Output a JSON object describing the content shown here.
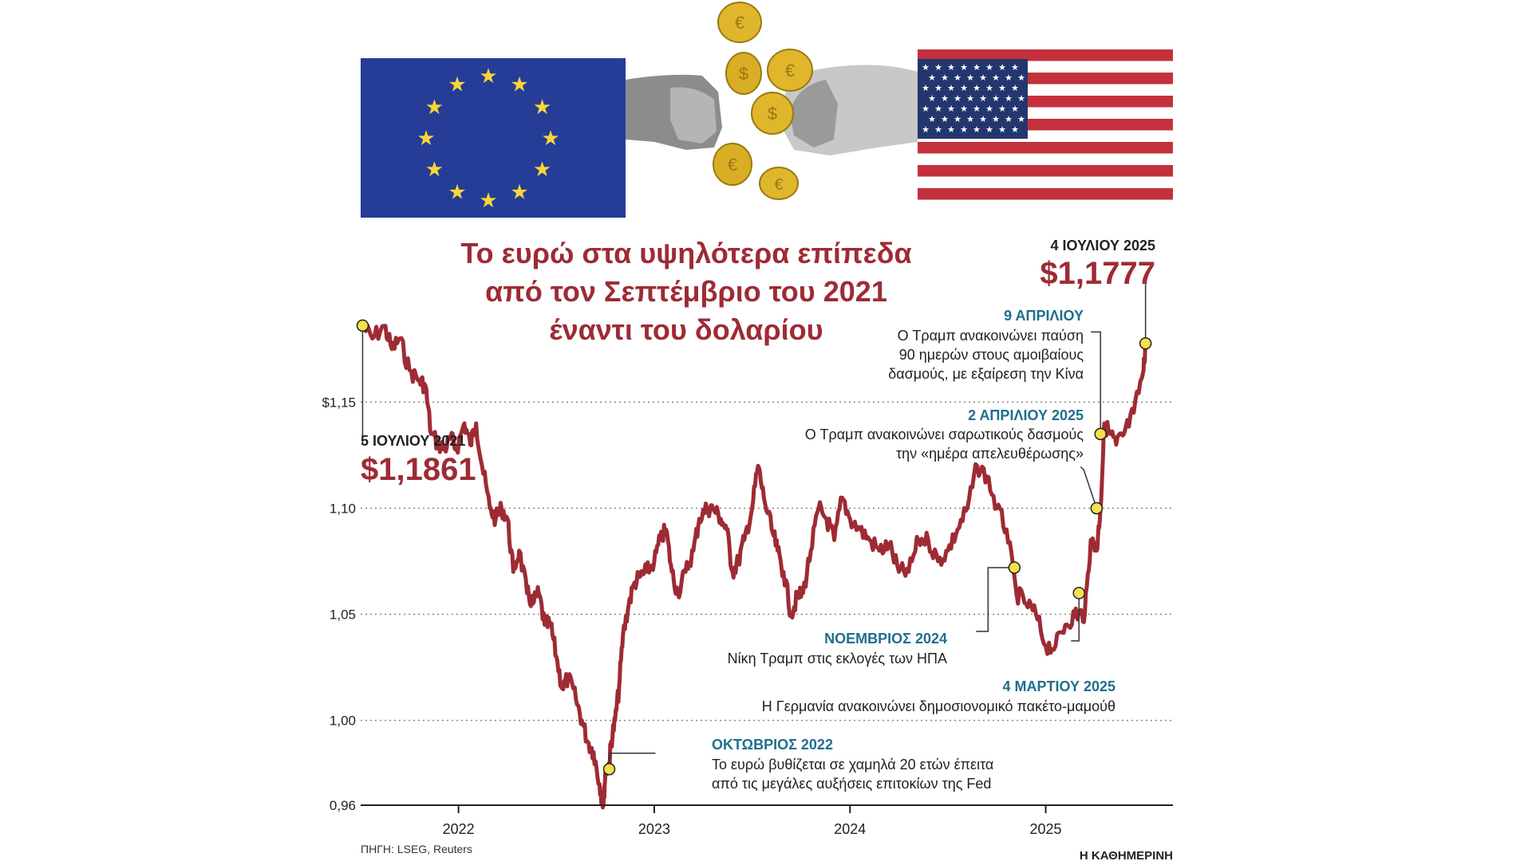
{
  "colors": {
    "line": "#9e2b34",
    "title": "#9e2b34",
    "event_date": "#1f6f8e",
    "dark_label": "#222222",
    "marker_fill": "#f4e04d",
    "eu_blue": "#253d96",
    "eu_star": "#f8d53a",
    "us_red": "#c4313c",
    "us_blue": "#24366e",
    "coin": "#e0b62c"
  },
  "chart_data": {
    "type": "line",
    "title": "Το ευρώ στα υψηλότερα επίπεδα από τον Σεπτέμβριο του 2021 έναντι του δολαρίου",
    "title_lines": [
      "Το ευρώ στα υψηλότερα επίπεδα",
      "από τον Σεπτέμβριο του 2021",
      "έναντι του δολαρίου"
    ],
    "xlabel": "",
    "ylabel": "",
    "xlim": [
      2021.5,
      2025.65
    ],
    "ylim": [
      0.96,
      1.19
    ],
    "y_ticks": [
      {
        "value": 1.15,
        "label": "$1,15"
      },
      {
        "value": 1.1,
        "label": "1,10"
      },
      {
        "value": 1.05,
        "label": "1,05"
      },
      {
        "value": 1.0,
        "label": "1,00"
      },
      {
        "value": 0.96,
        "label": "0,96"
      }
    ],
    "x_ticks": [
      {
        "value": 2022,
        "label": "2022"
      },
      {
        "value": 2023,
        "label": "2023"
      },
      {
        "value": 2024,
        "label": "2024"
      },
      {
        "value": 2025,
        "label": "2025"
      }
    ],
    "grid": "horizontal-dotted",
    "series": [
      {
        "name": "EUR/USD",
        "x": [
          2021.51,
          2021.56,
          2021.62,
          2021.66,
          2021.7,
          2021.75,
          2021.8,
          2021.83,
          2021.86,
          2021.9,
          2021.93,
          2021.96,
          2021.99,
          2022.03,
          2022.06,
          2022.09,
          2022.12,
          2022.16,
          2022.19,
          2022.22,
          2022.25,
          2022.28,
          2022.31,
          2022.35,
          2022.38,
          2022.41,
          2022.44,
          2022.47,
          2022.5,
          2022.53,
          2022.56,
          2022.6,
          2022.63,
          2022.66,
          2022.69,
          2022.72,
          2022.74,
          2022.75,
          2022.77,
          2022.78,
          2022.8,
          2022.82,
          2022.84,
          2022.87,
          2022.9,
          2022.93,
          2022.96,
          2023.0,
          2023.03,
          2023.06,
          2023.09,
          2023.12,
          2023.16,
          2023.2,
          2023.23,
          2023.27,
          2023.3,
          2023.34,
          2023.37,
          2023.4,
          2023.43,
          2023.46,
          2023.5,
          2023.53,
          2023.56,
          2023.6,
          2023.63,
          2023.66,
          2023.7,
          2023.73,
          2023.76,
          2023.8,
          2023.84,
          2023.88,
          2023.92,
          2023.96,
          2024.0,
          2024.05,
          2024.1,
          2024.15,
          2024.2,
          2024.25,
          2024.3,
          2024.35,
          2024.4,
          2024.45,
          2024.5,
          2024.55,
          2024.6,
          2024.65,
          2024.7,
          2024.75,
          2024.8,
          2024.85,
          2024.9,
          2024.95,
          2025.0,
          2025.05,
          2025.1,
          2025.15,
          2025.17,
          2025.2,
          2025.23,
          2025.26,
          2025.28,
          2025.3,
          2025.33,
          2025.36,
          2025.4,
          2025.45,
          2025.5,
          2025.51
        ],
        "values": [
          1.186,
          1.18,
          1.186,
          1.175,
          1.18,
          1.165,
          1.16,
          1.158,
          1.135,
          1.13,
          1.128,
          1.133,
          1.128,
          1.14,
          1.13,
          1.14,
          1.12,
          1.1,
          1.095,
          1.1,
          1.095,
          1.07,
          1.08,
          1.06,
          1.055,
          1.06,
          1.045,
          1.045,
          1.03,
          1.015,
          1.02,
          1.01,
          1.0,
          0.99,
          0.985,
          0.97,
          0.96,
          0.975,
          0.98,
          0.99,
          1.0,
          1.015,
          1.04,
          1.055,
          1.065,
          1.068,
          1.07,
          1.075,
          1.085,
          1.09,
          1.07,
          1.06,
          1.07,
          1.08,
          1.095,
          1.1,
          1.1,
          1.095,
          1.09,
          1.07,
          1.075,
          1.085,
          1.1,
          1.12,
          1.105,
          1.09,
          1.08,
          1.07,
          1.05,
          1.058,
          1.06,
          1.08,
          1.1,
          1.095,
          1.085,
          1.105,
          1.095,
          1.09,
          1.085,
          1.08,
          1.083,
          1.07,
          1.07,
          1.085,
          1.085,
          1.075,
          1.08,
          1.09,
          1.1,
          1.12,
          1.115,
          1.1,
          1.09,
          1.06,
          1.055,
          1.05,
          1.035,
          1.035,
          1.045,
          1.05,
          1.05,
          1.05,
          1.085,
          1.08,
          1.1,
          1.14,
          1.135,
          1.13,
          1.135,
          1.145,
          1.165,
          1.1777
        ]
      }
    ],
    "annotations": [
      {
        "id": "start",
        "x": 2021.51,
        "y": 1.1861,
        "date": "5 ΙΟΥΛΙΟΥ 2021",
        "value": "$1,1861",
        "text": ""
      },
      {
        "id": "oct2022",
        "x": 2022.77,
        "y": 0.977,
        "date": "ΟΚΤΩΒΡΙΟΣ 2022",
        "value": "",
        "text": "Το ευρώ βυθίζεται σε χαμηλά 20 ετών έπειτα από τις μεγάλες αυξήσεις επιτοκίων της Fed",
        "text_lines": [
          "Το ευρώ βυθίζεται σε χαμηλά 20 ετών έπειτα",
          "από τις μεγάλες αυξήσεις επιτοκίων της Fed"
        ]
      },
      {
        "id": "nov2024",
        "x": 2024.84,
        "y": 1.072,
        "date": "ΝΟΕΜΒΡΙΟΣ 2024",
        "value": "",
        "text": "Νίκη Τραμπ στις εκλογές των ΗΠΑ",
        "text_lines": [
          "Νίκη Τραμπ στις εκλογές των ΗΠΑ"
        ]
      },
      {
        "id": "mar2025",
        "x": 2025.17,
        "y": 1.06,
        "date": "4 ΜΑΡΤΙΟΥ 2025",
        "value": "",
        "text": "Η Γερμανία ανακοινώνει δημοσιονομικό πακέτο-μαμούθ",
        "text_lines": [
          "Η Γερμανία ανακοινώνει δημοσιονομικό πακέτο-μαμούθ"
        ]
      },
      {
        "id": "apr2",
        "x": 2025.26,
        "y": 1.1,
        "date": "2 ΑΠΡΙΛΙΟΥ 2025",
        "value": "",
        "text": "Ο Τραμπ ανακοινώνει σαρωτικούς δασμούς την «ημέρα απελευθέρωσης»",
        "text_lines": [
          "Ο Τραμπ ανακοινώνει σαρωτικούς δασμούς",
          "την «ημέρα απελευθέρωσης»"
        ]
      },
      {
        "id": "apr9",
        "x": 2025.28,
        "y": 1.135,
        "date": "9 ΑΠΡΙΛΙΟΥ",
        "value": "",
        "text": "Ο Τραμπ ανακοινώνει παύση 90 ημερών στους αμοιβαίους δασμούς, με εξαίρεση την Κίνα",
        "text_lines": [
          "Ο Τραμπ ανακοινώνει παύση",
          "90 ημερών στους αμοιβαίους",
          "δασμούς, με εξαίρεση την Κίνα"
        ]
      },
      {
        "id": "end",
        "x": 2025.51,
        "y": 1.1777,
        "date": "4 ΙΟΥΛΙΟΥ 2025",
        "value": "$1,1777",
        "text": ""
      }
    ]
  },
  "header_illustration": {
    "eu_flag_icon": "eu-flag-icon",
    "us_flag_icon": "us-flag-icon",
    "coins_icon": "coins-icon",
    "fists_icon": "fists-icon"
  },
  "footer": {
    "source": "ΠΗΓΗ: LSEG, Reuters",
    "publisher": "Η ΚΑΘΗΜΕΡΙΝΗ"
  }
}
